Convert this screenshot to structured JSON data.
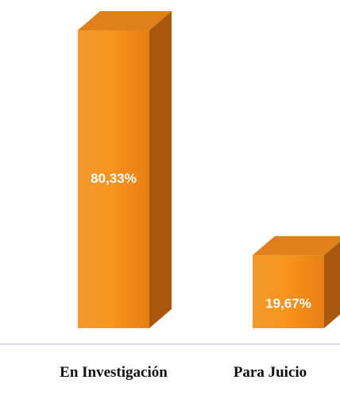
{
  "chart_data": {
    "type": "bar3d",
    "categories": [
      "En Investigación",
      "Para Juicio"
    ],
    "values": [
      80.33,
      19.67
    ],
    "value_labels": [
      "80,33%",
      "19,67%"
    ],
    "color": "#f28a1a"
  }
}
